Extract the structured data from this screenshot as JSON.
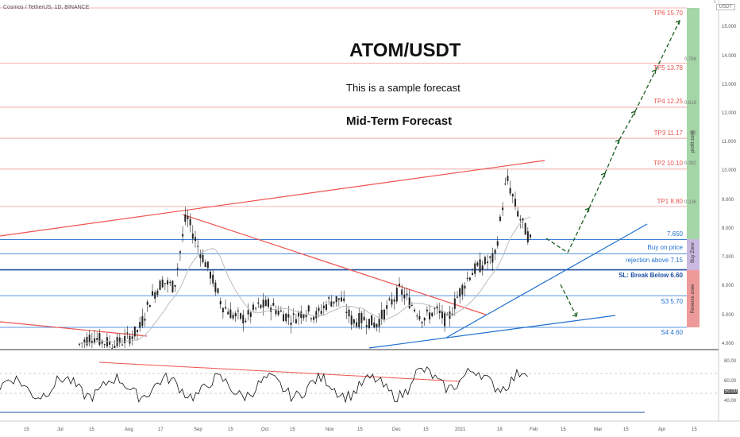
{
  "header": {
    "symbol_line": "Cosmos / TetherUS, 1D, BINANCE",
    "currency_badge": "USDT",
    "top_right_mark": "1"
  },
  "annotations": {
    "title": "ATOM/USDT",
    "subtitle": "This is a sample forecast",
    "forecast_label": "Mid-Term Forecast"
  },
  "levels": {
    "tp6": "TP6 15.70",
    "tp5": "TP5 13.78",
    "tp4": "TP4 12.25",
    "tp3": "TP3 11.17",
    "tp2": "TP2 10.10",
    "tp1": "TP1 8.80",
    "l7650": "7.650",
    "buy": "Buy on price",
    "rej": "rejection above 7.15",
    "sl": "SL: Break Below 6.60",
    "s3": "S3 5.70",
    "s4": "S4 4.60"
  },
  "fib_labels": {
    "f786": "0.786",
    "f618": "0.618",
    "f5": "0.5",
    "f382": "0.382",
    "f236": "0.236"
  },
  "zones": {
    "profit": "profit zone",
    "buy": "Buy Zone",
    "reverse": "Reverse zone"
  },
  "price_axis": [
    "15.000",
    "14.000",
    "13.000",
    "12.000",
    "11.000",
    "10.000",
    "9.000",
    "8.000",
    "7.000",
    "6.000",
    "5.000",
    "4.000"
  ],
  "rsi_axis": [
    "80.00",
    "60.00",
    "50.00",
    "40.00"
  ],
  "date_axis": [
    "15",
    "Jul",
    "15",
    "Aug",
    "17",
    "Sep",
    "15",
    "Oct",
    "15",
    "Nov",
    "15",
    "Dec",
    "15",
    "2021",
    "18",
    "Feb",
    "15",
    "Mar",
    "15",
    "Apr",
    "15"
  ],
  "chart_data": {
    "type": "candlestick",
    "ylim": [
      3.95,
      15.8
    ],
    "levels": [
      15.7,
      13.78,
      12.25,
      11.17,
      10.1,
      8.8,
      7.65,
      7.15,
      6.6,
      5.7,
      4.6
    ],
    "price_path": [
      4.0,
      4.3,
      4.1,
      4.0,
      4.2,
      4.5,
      5.6,
      6.2,
      6.0,
      8.5,
      7.4,
      6.5,
      5.4,
      5.0,
      4.9,
      5.3,
      5.4,
      5.1,
      4.9,
      5.2,
      5.0,
      5.5,
      5.6,
      4.8,
      4.9,
      4.7,
      5.3,
      5.9,
      5.4,
      4.9,
      5.2,
      4.8,
      5.8,
      6.5,
      6.8,
      7.0,
      9.8,
      8.5,
      7.6
    ],
    "rsi_range": [
      30,
      90
    ],
    "colors": {
      "up": "#26a69a",
      "down": "#ef5350",
      "sl": "#1e4fa3",
      "profit_zone": "#a5d6a7",
      "buy_zone": "#c9b8e0",
      "reverse_zone": "#ef9a9a"
    }
  }
}
